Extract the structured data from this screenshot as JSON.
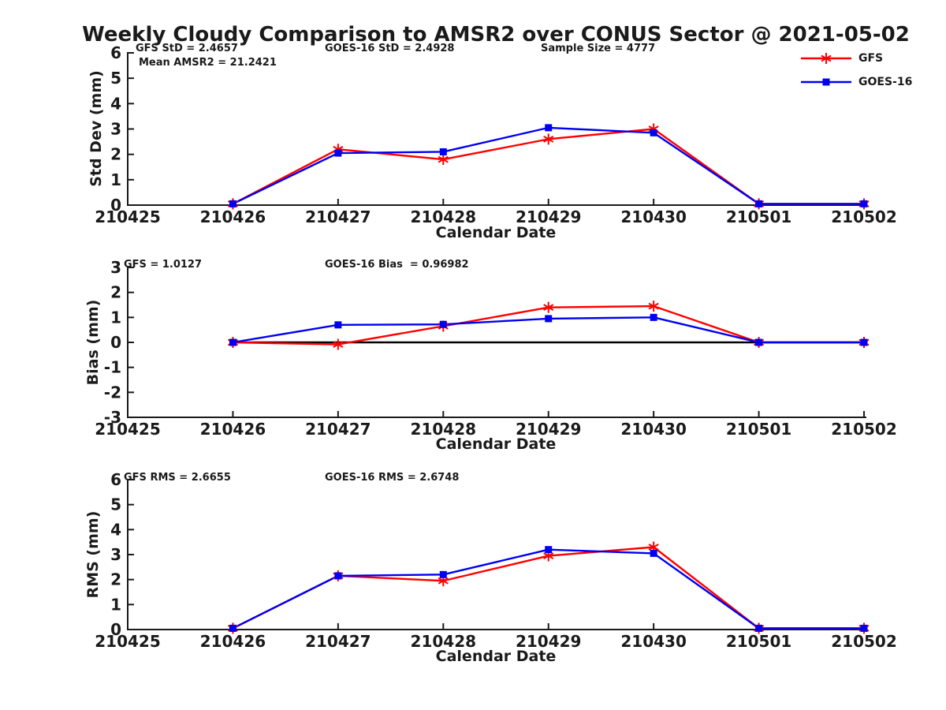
{
  "title": "Weekly Cloudy Comparison to AMSR2 over CONUS Sector @ 2021-05-02",
  "colors": {
    "gfs": "#ff0000",
    "goes16": "#0000f0",
    "axis": "#1a1a1a",
    "zero_line": "#000000"
  },
  "legend": [
    {
      "name": "GFS",
      "color": "#ff0000",
      "marker": "asterisk"
    },
    {
      "name": "GOES-16",
      "color": "#0000f0",
      "marker": "square"
    }
  ],
  "x_tick_labels": [
    "210425",
    "210426",
    "210427",
    "210428",
    "210429",
    "210430",
    "210501",
    "210502"
  ],
  "chart_data": [
    {
      "type": "line",
      "ylabel": "Std Dev (mm)",
      "xlabel": "Calendar Date",
      "ylim": [
        0,
        6
      ],
      "yticks": [
        0,
        1,
        2,
        3,
        4,
        5,
        6
      ],
      "grid": false,
      "legend_position": "top-right",
      "annotations": [
        {
          "text": "GFS StD = 2.4657"
        },
        {
          "text": "GOES-16 StD = 2.4928"
        },
        {
          "text": "Sample Size = 4777"
        },
        {
          "text": "Mean AMSR2 = 21.2421"
        }
      ],
      "x": [
        "210426",
        "210427",
        "210428",
        "210429",
        "210430",
        "210501",
        "210502"
      ],
      "series": [
        {
          "name": "GFS",
          "marker": "asterisk",
          "color": "#ff0000",
          "values": [
            0.05,
            2.2,
            1.8,
            2.6,
            3.0,
            0.05,
            0.05
          ]
        },
        {
          "name": "GOES-16",
          "marker": "square",
          "color": "#0000f0",
          "values": [
            0.05,
            2.05,
            2.1,
            3.05,
            2.85,
            0.05,
            0.05
          ]
        }
      ]
    },
    {
      "type": "line",
      "ylabel": "Bias (mm)",
      "xlabel": "Calendar Date",
      "ylim": [
        -3,
        3
      ],
      "yticks": [
        -3,
        -2,
        -1,
        0,
        1,
        2,
        3
      ],
      "grid": false,
      "zero_line": true,
      "annotations": [
        {
          "text": "GFS = 1.0127"
        },
        {
          "text": "GOES-16 Bias  = 0.96982"
        }
      ],
      "x": [
        "210426",
        "210427",
        "210428",
        "210429",
        "210430",
        "210501",
        "210502"
      ],
      "series": [
        {
          "name": "GFS",
          "marker": "asterisk",
          "color": "#ff0000",
          "values": [
            0.0,
            -0.08,
            0.65,
            1.4,
            1.45,
            0.0,
            0.0
          ]
        },
        {
          "name": "GOES-16",
          "marker": "square",
          "color": "#0000f0",
          "values": [
            0.0,
            0.7,
            0.72,
            0.95,
            1.0,
            0.0,
            0.0
          ]
        }
      ]
    },
    {
      "type": "line",
      "ylabel": "RMS (mm)",
      "xlabel": "Calendar Date",
      "ylim": [
        0,
        6
      ],
      "yticks": [
        0,
        1,
        2,
        3,
        4,
        5,
        6
      ],
      "grid": false,
      "annotations": [
        {
          "text": "GFS RMS = 2.6655"
        },
        {
          "text": "GOES-16 RMS = 2.6748"
        }
      ],
      "x": [
        "210426",
        "210427",
        "210428",
        "210429",
        "210430",
        "210501",
        "210502"
      ],
      "series": [
        {
          "name": "GFS",
          "marker": "asterisk",
          "color": "#ff0000",
          "values": [
            0.05,
            2.15,
            1.95,
            2.95,
            3.3,
            0.05,
            0.05
          ]
        },
        {
          "name": "GOES-16",
          "marker": "square",
          "color": "#0000f0",
          "values": [
            0.05,
            2.15,
            2.2,
            3.2,
            3.05,
            0.05,
            0.05
          ]
        }
      ]
    }
  ]
}
